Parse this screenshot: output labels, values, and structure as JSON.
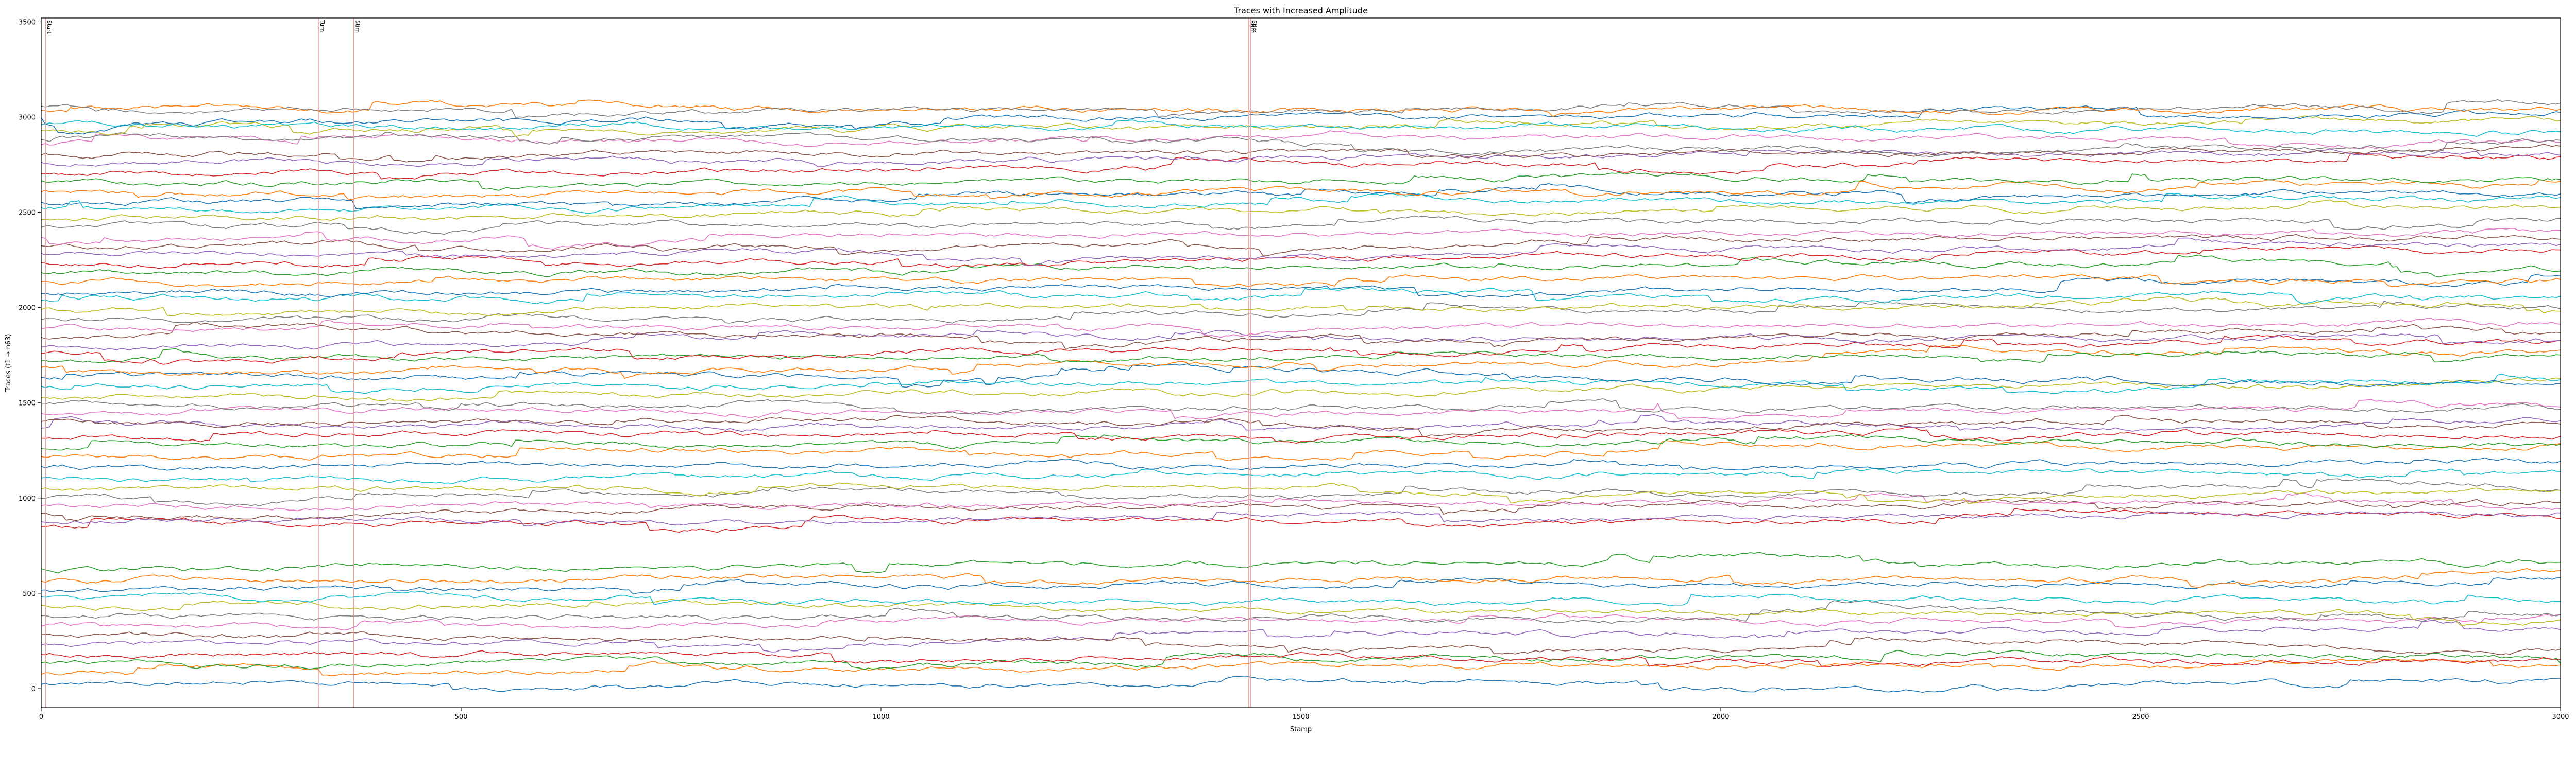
{
  "chart_data": {
    "type": "line",
    "title": "Traces with Increased Amplitude",
    "xlabel": "Stamp",
    "ylabel": "Traces (t1 → n63)",
    "xlim": [
      0,
      3000
    ],
    "ylim": [
      -100,
      3520
    ],
    "x_ticks": [
      0,
      500,
      1000,
      1500,
      2000,
      2500,
      3000
    ],
    "y_ticks": [
      0,
      500,
      1000,
      1500,
      2000,
      2500,
      3000,
      3500
    ],
    "grid": false,
    "legend": "none",
    "n_samples": 600,
    "palette": [
      "#1f77b4",
      "#ff7f0e",
      "#2ca02c",
      "#d62728",
      "#9467bd",
      "#8c564b",
      "#e377c2",
      "#7f7f7f",
      "#bcbd22",
      "#17becf"
    ],
    "series": [
      {
        "baseline": 30,
        "trend": 0,
        "color": "#1f77b4"
      },
      {
        "baseline": 80,
        "trend": 60,
        "color": "#ff7f0e"
      },
      {
        "baseline": 130,
        "trend": 40,
        "color": "#2ca02c"
      },
      {
        "baseline": 180,
        "trend": -20,
        "color": "#d62728"
      },
      {
        "baseline": 230,
        "trend": 80,
        "color": "#9467bd"
      },
      {
        "baseline": 280,
        "trend": -80,
        "color": "#8c564b"
      },
      {
        "baseline": 330,
        "trend": 30,
        "color": "#e377c2"
      },
      {
        "baseline": 380,
        "trend": -40,
        "color": "#7f7f7f"
      },
      {
        "baseline": 430,
        "trend": -40,
        "color": "#bcbd22"
      },
      {
        "baseline": 480,
        "trend": -40,
        "color": "#17becf"
      },
      {
        "baseline": 520,
        "trend": 30,
        "color": "#1f77b4"
      },
      {
        "baseline": 570,
        "trend": 20,
        "color": "#ff7f0e"
      },
      {
        "baseline": 630,
        "trend": 40,
        "color": "#2ca02c"
      },
      {
        "baseline": 850,
        "trend": 50,
        "color": "#d62728"
      },
      {
        "baseline": 880,
        "trend": 40,
        "color": "#9467bd"
      },
      {
        "baseline": 920,
        "trend": 80,
        "color": "#8c564b"
      },
      {
        "baseline": 960,
        "trend": 20,
        "color": "#e377c2"
      },
      {
        "baseline": 1000,
        "trend": 30,
        "color": "#7f7f7f"
      },
      {
        "baseline": 1050,
        "trend": 0,
        "color": "#bcbd22"
      },
      {
        "baseline": 1100,
        "trend": 20,
        "color": "#17becf"
      },
      {
        "baseline": 1160,
        "trend": 30,
        "color": "#1f77b4"
      },
      {
        "baseline": 1220,
        "trend": 50,
        "color": "#ff7f0e"
      },
      {
        "baseline": 1260,
        "trend": 30,
        "color": "#2ca02c"
      },
      {
        "baseline": 1310,
        "trend": 40,
        "color": "#d62728"
      },
      {
        "baseline": 1360,
        "trend": 20,
        "color": "#9467bd"
      },
      {
        "baseline": 1400,
        "trend": -20,
        "color": "#8c564b"
      },
      {
        "baseline": 1450,
        "trend": 20,
        "color": "#e377c2"
      },
      {
        "baseline": 1490,
        "trend": -20,
        "color": "#7f7f7f"
      },
      {
        "baseline": 1530,
        "trend": 60,
        "color": "#bcbd22"
      },
      {
        "baseline": 1580,
        "trend": 30,
        "color": "#17becf"
      },
      {
        "baseline": 1630,
        "trend": -30,
        "color": "#1f77b4"
      },
      {
        "baseline": 1680,
        "trend": 60,
        "color": "#ff7f0e"
      },
      {
        "baseline": 1720,
        "trend": 40,
        "color": "#2ca02c"
      },
      {
        "baseline": 1760,
        "trend": 60,
        "color": "#d62728"
      },
      {
        "baseline": 1800,
        "trend": 50,
        "color": "#9467bd"
      },
      {
        "baseline": 1850,
        "trend": 20,
        "color": "#8c564b"
      },
      {
        "baseline": 1890,
        "trend": 30,
        "color": "#e377c2"
      },
      {
        "baseline": 1940,
        "trend": 40,
        "color": "#7f7f7f"
      },
      {
        "baseline": 1990,
        "trend": 30,
        "color": "#bcbd22"
      },
      {
        "baseline": 2030,
        "trend": 60,
        "color": "#17becf"
      },
      {
        "baseline": 2080,
        "trend": 40,
        "color": "#1f77b4"
      },
      {
        "baseline": 2130,
        "trend": 40,
        "color": "#ff7f0e"
      },
      {
        "baseline": 2180,
        "trend": 40,
        "color": "#2ca02c"
      },
      {
        "baseline": 2230,
        "trend": 60,
        "color": "#d62728"
      },
      {
        "baseline": 2280,
        "trend": 40,
        "color": "#9467bd"
      },
      {
        "baseline": 2320,
        "trend": 50,
        "color": "#8c564b"
      },
      {
        "baseline": 2370,
        "trend": 30,
        "color": "#e377c2"
      },
      {
        "baseline": 2420,
        "trend": 40,
        "color": "#7f7f7f"
      },
      {
        "baseline": 2470,
        "trend": 60,
        "color": "#bcbd22"
      },
      {
        "baseline": 2520,
        "trend": 30,
        "color": "#17becf"
      },
      {
        "baseline": 2560,
        "trend": 40,
        "color": "#1f77b4"
      },
      {
        "baseline": 2610,
        "trend": 20,
        "color": "#ff7f0e"
      },
      {
        "baseline": 2660,
        "trend": 20,
        "color": "#2ca02c"
      },
      {
        "baseline": 2710,
        "trend": 60,
        "color": "#d62728"
      },
      {
        "baseline": 2760,
        "trend": 60,
        "color": "#9467bd"
      },
      {
        "baseline": 2800,
        "trend": 30,
        "color": "#8c564b"
      },
      {
        "baseline": 2850,
        "trend": 40,
        "color": "#e377c2"
      },
      {
        "baseline": 2890,
        "trend": -60,
        "color": "#7f7f7f"
      },
      {
        "baseline": 2930,
        "trend": 40,
        "color": "#bcbd22"
      },
      {
        "baseline": 2960,
        "trend": -40,
        "color": "#17becf"
      },
      {
        "baseline": 3000,
        "trend": 20,
        "color": "#1f77b4"
      },
      {
        "baseline": 3030,
        "trend": 10,
        "color": "#ff7f0e"
      },
      {
        "baseline": 3060,
        "trend": -20,
        "color": "#7f7f7f"
      }
    ],
    "events": [
      {
        "x": 5,
        "label": "Start"
      },
      {
        "x": 330,
        "label": "Turn"
      },
      {
        "x": 372,
        "label": "Stim"
      },
      {
        "x": 1438,
        "label": "Stim"
      },
      {
        "x": 1440,
        "label": "Stim"
      }
    ],
    "event_color": "#e8a0a0"
  }
}
